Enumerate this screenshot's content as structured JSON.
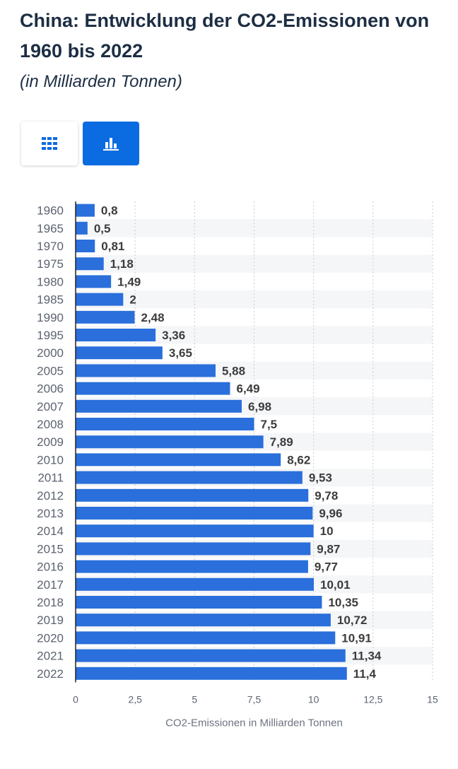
{
  "header": {
    "title": "China: Entwicklung der CO2-Emissionen von 1960 bis 2022",
    "subtitle": "(in Milliarden Tonnen)"
  },
  "view_toggle": {
    "table_icon": "grid-icon",
    "chart_icon": "bar-chart-icon",
    "active": "chart",
    "accent": "#0b6be0"
  },
  "chart_data": {
    "type": "bar",
    "orientation": "horizontal",
    "categories": [
      "1960",
      "1965",
      "1970",
      "1975",
      "1980",
      "1985",
      "1990",
      "1995",
      "2000",
      "2005",
      "2006",
      "2007",
      "2008",
      "2009",
      "2010",
      "2011",
      "2012",
      "2013",
      "2014",
      "2015",
      "2016",
      "2017",
      "2018",
      "2019",
      "2020",
      "2021",
      "2022"
    ],
    "values": [
      0.8,
      0.5,
      0.81,
      1.18,
      1.49,
      2,
      2.48,
      3.36,
      3.65,
      5.88,
      6.49,
      6.98,
      7.5,
      7.89,
      8.62,
      9.53,
      9.78,
      9.96,
      10,
      9.87,
      9.77,
      10.01,
      10.35,
      10.72,
      10.91,
      11.34,
      11.4
    ],
    "value_labels": [
      "0,8",
      "0,5",
      "0,81",
      "1,18",
      "1,49",
      "2",
      "2,48",
      "3,36",
      "3,65",
      "5,88",
      "6,49",
      "6,98",
      "7,5",
      "7,89",
      "8,62",
      "9,53",
      "9,78",
      "9,96",
      "10",
      "9,87",
      "9,77",
      "10,01",
      "10,35",
      "10,72",
      "10,91",
      "11,34",
      "11,4"
    ],
    "xlim": [
      0,
      15
    ],
    "ticks": [
      0,
      2.5,
      5,
      7.5,
      10,
      12.5,
      15
    ],
    "tick_labels": [
      "0",
      "2,5",
      "5",
      "7,5",
      "10",
      "12,5",
      "15"
    ],
    "xlabel": "CO2-Emissionen in Milliarden Tonnen",
    "bar_color": "#2a6fdb",
    "grid": true
  }
}
